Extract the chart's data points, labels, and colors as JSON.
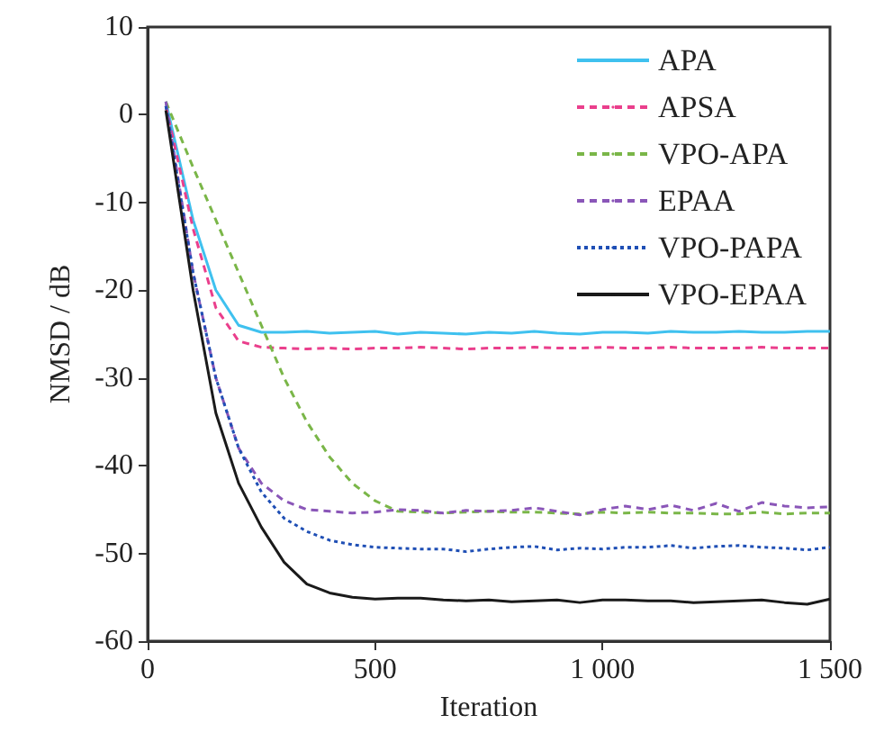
{
  "chart_data": {
    "type": "line",
    "xlabel": "Iteration",
    "ylabel": "NMSD / dB",
    "xlim": [
      0,
      1500
    ],
    "xticks": [
      0,
      500,
      {
        "value": 1000,
        "label": "1 000"
      },
      {
        "value": 1500,
        "label": "1 500"
      }
    ],
    "ylim": [
      -60,
      10
    ],
    "yticks": [
      -60,
      -50,
      -40,
      -30,
      -20,
      -10,
      0,
      10
    ],
    "grid": false,
    "legend": "top right",
    "marker": "none",
    "x": [
      40,
      100,
      150,
      200,
      250,
      300,
      350,
      400,
      450,
      500,
      550,
      600,
      650,
      700,
      750,
      800,
      850,
      900,
      950,
      1000,
      1050,
      1100,
      1150,
      1200,
      1250,
      1300,
      1350,
      1400,
      1450,
      1500
    ],
    "series": [
      {
        "name": "APA",
        "color": "#3fc1ef",
        "line_style": "solid",
        "values": [
          1.5,
          -12,
          -20,
          -24,
          -24.8,
          -24.8,
          -24.7,
          -24.9,
          -24.8,
          -24.7,
          -25,
          -24.8,
          -24.9,
          -25,
          -24.8,
          -24.9,
          -24.7,
          -24.9,
          -25,
          -24.8,
          -24.8,
          -24.9,
          -24.7,
          -24.8,
          -24.8,
          -24.7,
          -24.8,
          -24.8,
          -24.7,
          -24.7
        ]
      },
      {
        "name": "APSA",
        "color": "#ea3f8c",
        "line_style": "dashed",
        "values": [
          1,
          -13,
          -22,
          -25.8,
          -26.5,
          -26.6,
          -26.7,
          -26.6,
          -26.7,
          -26.6,
          -26.6,
          -26.5,
          -26.6,
          -26.7,
          -26.6,
          -26.6,
          -26.5,
          -26.6,
          -26.6,
          -26.5,
          -26.6,
          -26.6,
          -26.5,
          -26.6,
          -26.6,
          -26.6,
          -26.5,
          -26.6,
          -26.6,
          -26.6
        ]
      },
      {
        "name": "VPO-APA",
        "color": "#7ab648",
        "line_style": "dashed",
        "values": [
          1.5,
          -6,
          -12,
          -18,
          -24,
          -30,
          -35,
          -39,
          -42,
          -44,
          -45.2,
          -45.3,
          -45.4,
          -45.3,
          -45.2,
          -45.3,
          -45.3,
          -45.4,
          -45.5,
          -45.3,
          -45.4,
          -45.3,
          -45.4,
          -45.4,
          -45.5,
          -45.5,
          -45.3,
          -45.5,
          -45.4,
          -45.4
        ]
      },
      {
        "name": "EPAA",
        "color": "#8a56b8",
        "line_style": "dashed",
        "values": [
          1.5,
          -18,
          -30,
          -38,
          -42,
          -44,
          -45,
          -45.2,
          -45.4,
          -45.3,
          -45,
          -45.1,
          -45.4,
          -45.1,
          -45.2,
          -45.1,
          -44.8,
          -45.2,
          -45.6,
          -45,
          -44.6,
          -45,
          -44.5,
          -45.1,
          -44.3,
          -45.2,
          -44.2,
          -44.6,
          -44.8,
          -44.7
        ]
      },
      {
        "name": "VPO-PAPA",
        "color": "#1f4fb5",
        "line_style": "dotted",
        "values": [
          1,
          -18,
          -30,
          -38,
          -43,
          -46,
          -47.5,
          -48.5,
          -49,
          -49.3,
          -49.4,
          -49.5,
          -49.5,
          -49.8,
          -49.5,
          -49.3,
          -49.2,
          -49.6,
          -49.4,
          -49.5,
          -49.3,
          -49.3,
          -49.1,
          -49.4,
          -49.2,
          -49.1,
          -49.3,
          -49.4,
          -49.6,
          -49.3
        ]
      },
      {
        "name": "VPO-EPAA",
        "color": "#1a1a1a",
        "line_style": "solid",
        "values": [
          0.5,
          -20,
          -34,
          -42,
          -47,
          -51,
          -53.5,
          -54.5,
          -55,
          -55.2,
          -55.1,
          -55.1,
          -55.3,
          -55.4,
          -55.3,
          -55.5,
          -55.4,
          -55.3,
          -55.6,
          -55.3,
          -55.3,
          -55.4,
          -55.4,
          -55.6,
          -55.5,
          -55.4,
          -55.3,
          -55.6,
          -55.8,
          -55.2
        ]
      }
    ]
  }
}
